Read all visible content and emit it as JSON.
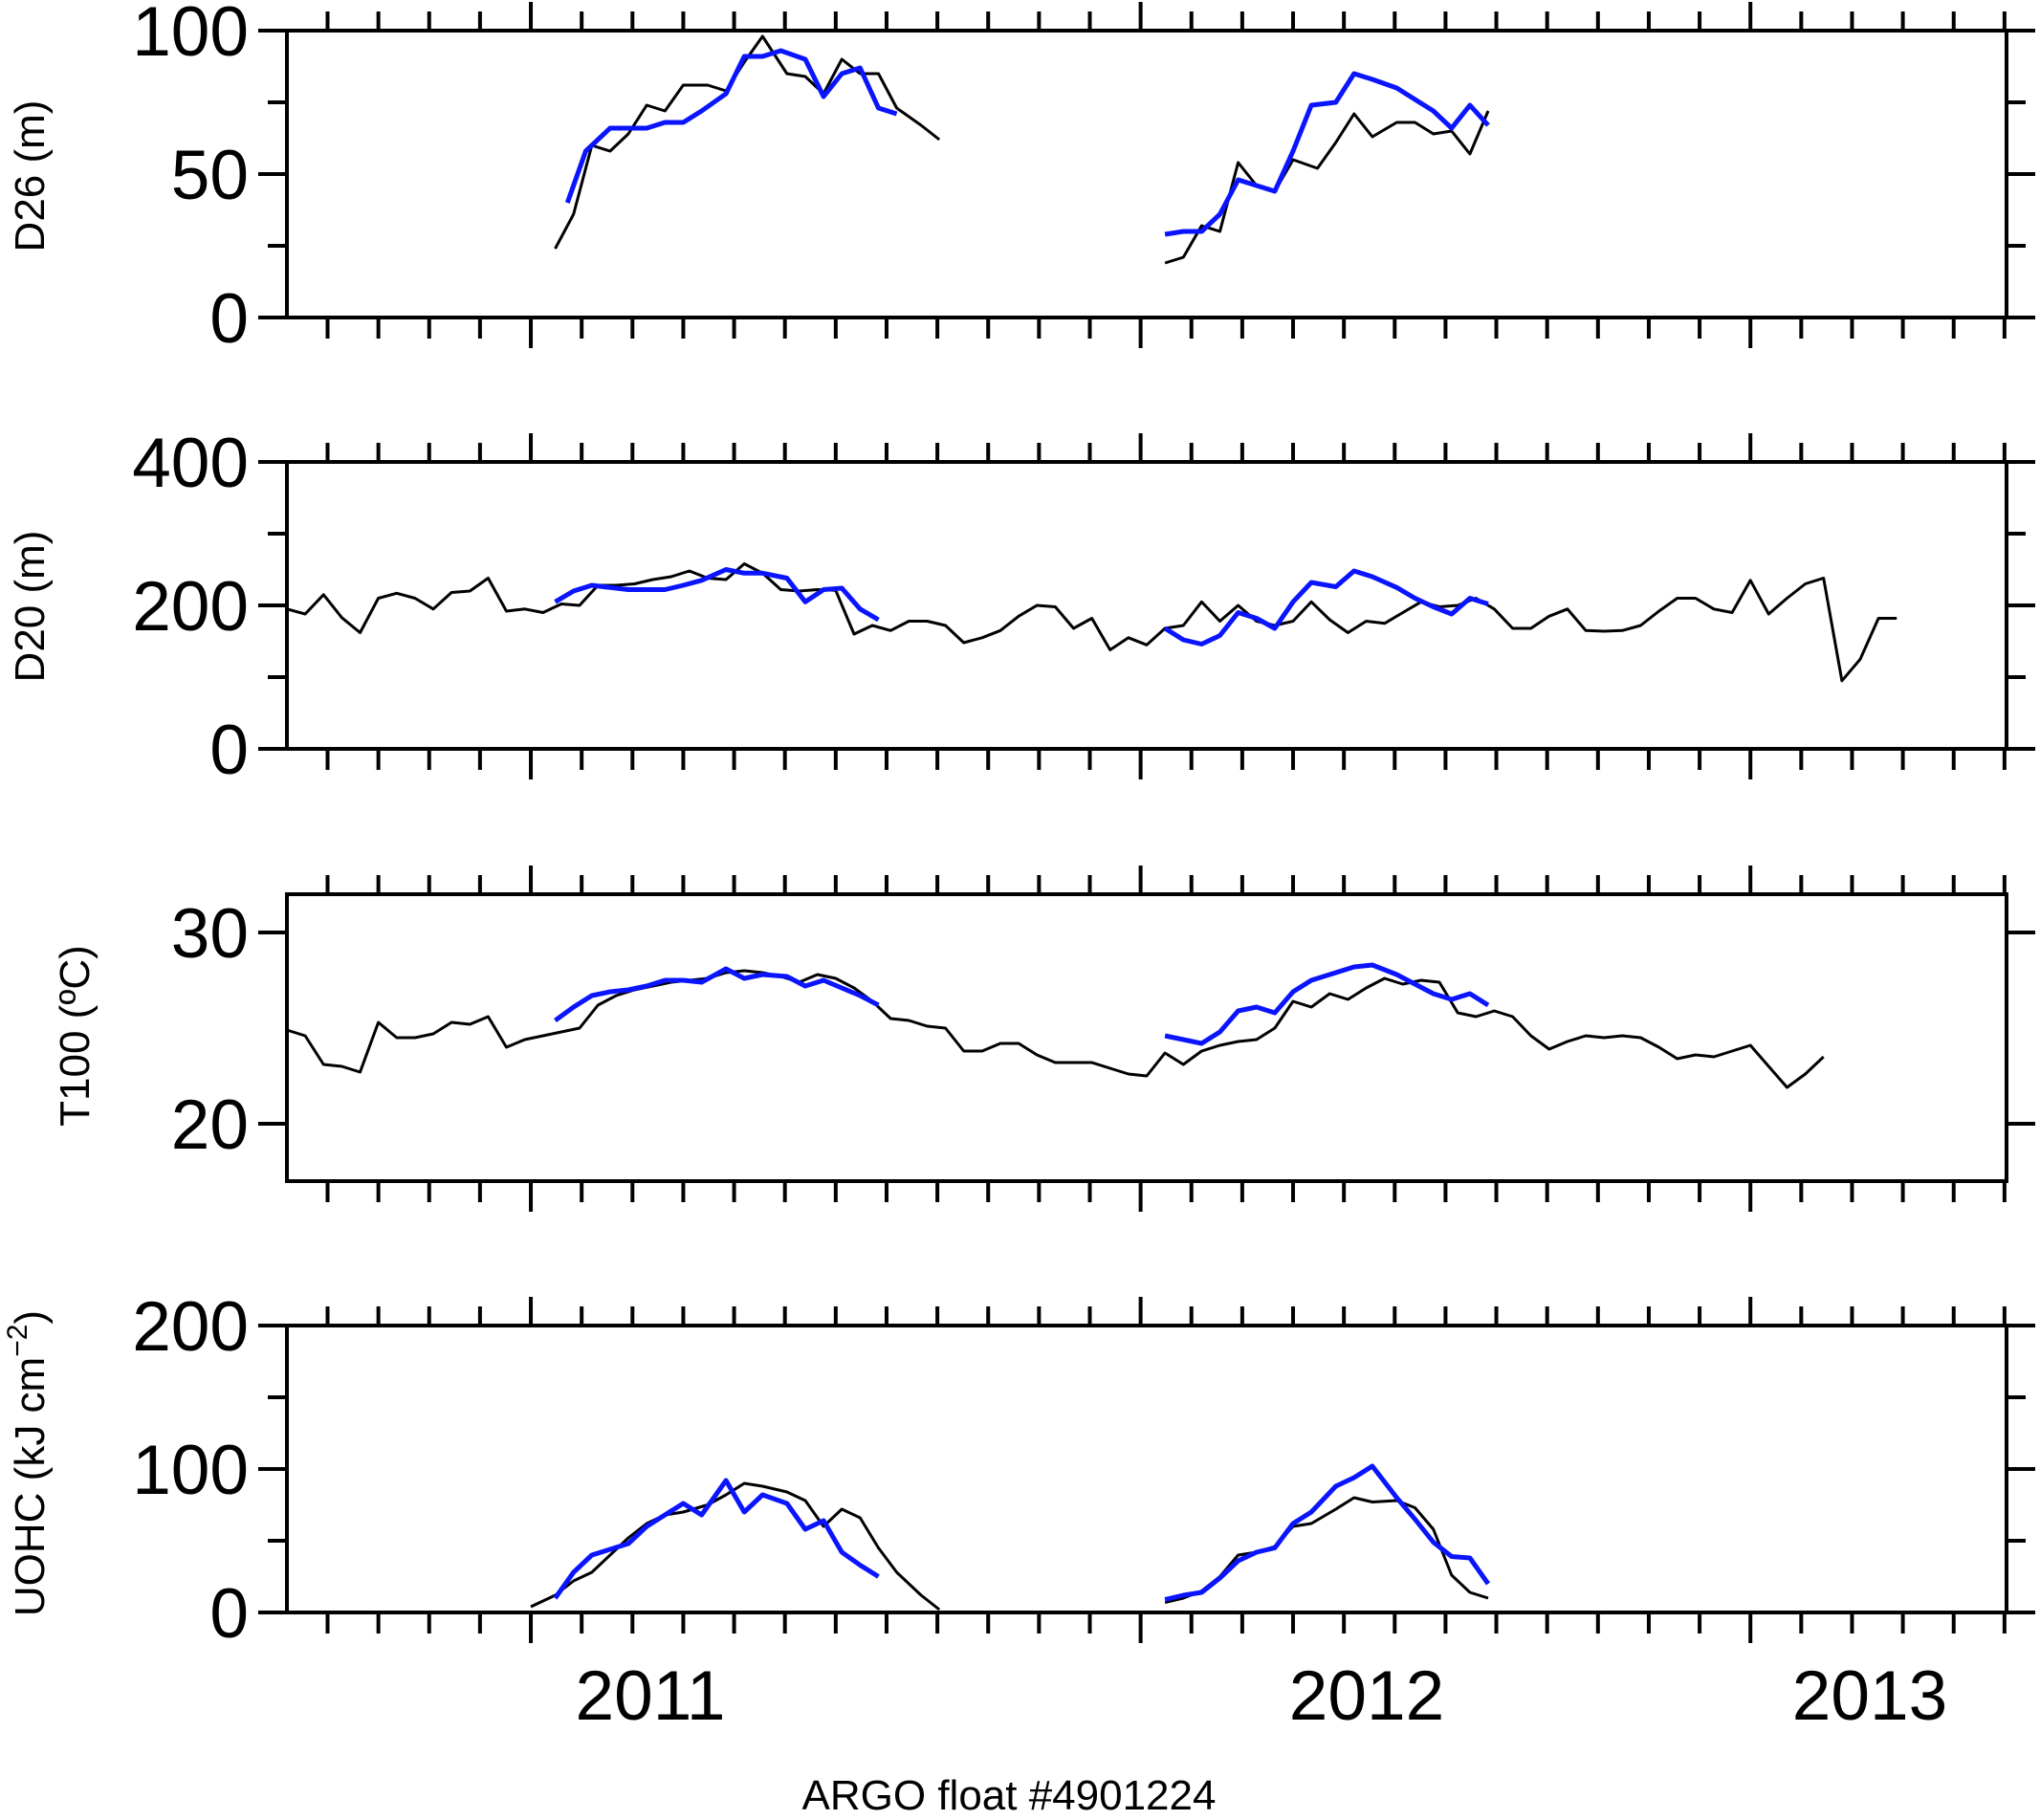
{
  "colors": {
    "series_black": "#000000",
    "series_blue": "#0a14ff"
  },
  "chart_data": [
    {
      "type": "line",
      "ylabel": "D26 (m)",
      "ylim": [
        0,
        100
      ],
      "yticks": [
        0,
        50,
        100
      ],
      "yticklabels": [
        "0",
        "50",
        "100"
      ],
      "xlim": [
        2010.6,
        2013.42
      ],
      "series": [
        {
          "color": "black",
          "x": [
            2011.04,
            2011.07,
            2011.1,
            2011.13,
            2011.16,
            2011.19,
            2011.22,
            2011.25,
            2011.29,
            2011.32,
            2011.35,
            2011.38,
            2011.42,
            2011.45,
            2011.48,
            2011.51,
            2011.54,
            2011.57,
            2011.6,
            2011.64,
            2011.67,
            2011.7
          ],
          "y": [
            24,
            36,
            60,
            58,
            64,
            74,
            72,
            81,
            81,
            79,
            89,
            98,
            85,
            84,
            78,
            90,
            85,
            85,
            73,
            67,
            62,
            null
          ]
        },
        {
          "color": "blue",
          "x": [
            2011.06,
            2011.09,
            2011.13,
            2011.16,
            2011.19,
            2011.22,
            2011.25,
            2011.28,
            2011.32,
            2011.35,
            2011.38,
            2011.41,
            2011.45,
            2011.48,
            2011.51,
            2011.54,
            2011.57,
            2011.6,
            2011.63
          ],
          "y": [
            40,
            58,
            66,
            66,
            66,
            68,
            68,
            72,
            78,
            91,
            91,
            93,
            90,
            77,
            85,
            87,
            73,
            71,
            null
          ]
        },
        {
          "color": "black",
          "x": [
            2012.04,
            2012.07,
            2012.1,
            2012.13,
            2012.16,
            2012.19,
            2012.22,
            2012.25,
            2012.29,
            2012.32,
            2012.35,
            2012.38,
            2012.42,
            2012.45,
            2012.48,
            2012.51,
            2012.54,
            2012.57,
            2012.6,
            2012.63
          ],
          "y": [
            19,
            21,
            32,
            30,
            54,
            46,
            44,
            55,
            52,
            61,
            71,
            63,
            68,
            68,
            64,
            65,
            57,
            72,
            null,
            null
          ]
        },
        {
          "color": "blue",
          "x": [
            2012.04,
            2012.07,
            2012.1,
            2012.13,
            2012.16,
            2012.19,
            2012.22,
            2012.25,
            2012.28,
            2012.32,
            2012.35,
            2012.38,
            2012.42,
            2012.45,
            2012.48,
            2012.51,
            2012.54,
            2012.57
          ],
          "y": [
            29,
            30,
            30,
            36,
            48,
            46,
            44,
            58,
            74,
            75,
            85,
            83,
            80,
            76,
            72,
            66,
            74,
            67
          ]
        }
      ]
    },
    {
      "type": "line",
      "ylabel": "D20 (m)",
      "ylim": [
        0,
        400
      ],
      "yticks": [
        0,
        200,
        400
      ],
      "yticklabels": [
        "0",
        "200",
        "400"
      ],
      "xlim": [
        2010.6,
        2013.42
      ],
      "series": [
        {
          "color": "black",
          "x": [
            2010.6,
            2010.63,
            2010.66,
            2010.69,
            2010.72,
            2010.75,
            2010.78,
            2010.81,
            2010.84,
            2010.87,
            2010.9,
            2010.93,
            2010.96,
            2010.99,
            2011.02,
            2011.05,
            2011.08,
            2011.11,
            2011.14,
            2011.17,
            2011.2,
            2011.23,
            2011.26,
            2011.29,
            2011.32,
            2011.35,
            2011.38,
            2011.41,
            2011.44,
            2011.47,
            2011.5,
            2011.53,
            2011.56,
            2011.59,
            2011.62,
            2011.65,
            2011.68,
            2011.71,
            2011.74,
            2011.77,
            2011.8,
            2011.83,
            2011.86,
            2011.89,
            2011.92,
            2011.95,
            2011.98,
            2012.01,
            2012.04,
            2012.07,
            2012.1,
            2012.13,
            2012.16,
            2012.19,
            2012.22,
            2012.25,
            2012.28,
            2012.31,
            2012.34,
            2012.37,
            2012.4,
            2012.43,
            2012.46,
            2012.49,
            2012.52,
            2012.55,
            2012.58,
            2012.61,
            2012.64,
            2012.67,
            2012.7,
            2012.73,
            2012.76,
            2012.79,
            2012.82,
            2012.85,
            2012.88,
            2012.91,
            2012.94,
            2012.97,
            2013.0,
            2013.03,
            2013.06,
            2013.09,
            2013.12,
            2013.15,
            2013.18,
            2013.21,
            2013.24,
            2013.27,
            2013.3,
            2013.33,
            2013.36,
            2013.39,
            2013.42
          ],
          "y": [
            195,
            188,
            215,
            183,
            162,
            210,
            217,
            210,
            195,
            218,
            220,
            238,
            192,
            195,
            190,
            202,
            200,
            228,
            228,
            230,
            236,
            240,
            248,
            238,
            236,
            258,
            245,
            222,
            220,
            222,
            221,
            160,
            172,
            165,
            178,
            178,
            172,
            148,
            155,
            165,
            185,
            200,
            198,
            168,
            182,
            138,
            155,
            145,
            168,
            172,
            205,
            178,
            200,
            178,
            172,
            178,
            205,
            180,
            162,
            178,
            175,
            190,
            205,
            198,
            200,
            210,
            195,
            168,
            168,
            185,
            195,
            165,
            164,
            165,
            172,
            192,
            210,
            210,
            195,
            190,
            235,
            188,
            210,
            230,
            238,
            95,
            125,
            182,
            182,
            null,
            null,
            null,
            null,
            null,
            null
          ]
        },
        {
          "color": "blue",
          "x": [
            2011.04,
            2011.07,
            2011.1,
            2011.13,
            2011.16,
            2011.19,
            2011.22,
            2011.25,
            2011.28,
            2011.32,
            2011.35,
            2011.38,
            2011.42,
            2011.45,
            2011.48,
            2011.51,
            2011.54,
            2011.57,
            2011.6
          ],
          "y": [
            205,
            220,
            228,
            225,
            222,
            222,
            222,
            228,
            235,
            250,
            245,
            245,
            238,
            205,
            222,
            224,
            195,
            180,
            null
          ]
        },
        {
          "color": "blue",
          "x": [
            2012.04,
            2012.07,
            2012.1,
            2012.13,
            2012.16,
            2012.19,
            2012.22,
            2012.25,
            2012.28,
            2012.32,
            2012.35,
            2012.38,
            2012.42,
            2012.45,
            2012.48,
            2012.51,
            2012.54,
            2012.57
          ],
          "y": [
            168,
            152,
            146,
            158,
            190,
            182,
            168,
            205,
            232,
            226,
            248,
            240,
            225,
            210,
            198,
            188,
            210,
            202
          ]
        }
      ]
    },
    {
      "type": "line",
      "ylabel": "T100 (ºC)",
      "ylim": [
        17,
        32
      ],
      "yticks": [
        20,
        30
      ],
      "yticklabels": [
        "20",
        "30"
      ],
      "xlim": [
        2010.6,
        2013.42
      ],
      "series": [
        {
          "color": "black",
          "x": [
            2010.6,
            2010.63,
            2010.66,
            2010.69,
            2010.72,
            2010.75,
            2010.78,
            2010.81,
            2010.84,
            2010.87,
            2010.9,
            2010.93,
            2010.96,
            2010.99,
            2011.02,
            2011.05,
            2011.08,
            2011.11,
            2011.14,
            2011.17,
            2011.2,
            2011.23,
            2011.26,
            2011.29,
            2011.32,
            2011.35,
            2011.38,
            2011.41,
            2011.44,
            2011.47,
            2011.5,
            2011.53,
            2011.56,
            2011.59,
            2011.62,
            2011.65,
            2011.68,
            2011.71,
            2011.74,
            2011.77,
            2011.8,
            2011.83,
            2011.86,
            2011.89,
            2011.92,
            2011.95,
            2011.98,
            2012.01,
            2012.04,
            2012.07,
            2012.1,
            2012.13,
            2012.16,
            2012.19,
            2012.22,
            2012.25,
            2012.28,
            2012.31,
            2012.34,
            2012.37,
            2012.4,
            2012.43,
            2012.46,
            2012.49,
            2012.52,
            2012.55,
            2012.58,
            2012.61,
            2012.64,
            2012.67,
            2012.7,
            2012.73,
            2012.76,
            2012.79,
            2012.82,
            2012.85,
            2012.88,
            2012.91,
            2012.94,
            2012.97,
            2013.0,
            2013.03,
            2013.06,
            2013.09,
            2013.12,
            2013.15,
            2013.18,
            2013.21,
            2013.24,
            2013.27
          ],
          "y": [
            24.9,
            24.6,
            23.1,
            23.0,
            22.7,
            25.3,
            24.5,
            24.5,
            24.7,
            25.3,
            25.2,
            25.6,
            24.0,
            24.4,
            24.6,
            24.8,
            25.0,
            26.2,
            26.7,
            27.0,
            27.2,
            27.4,
            27.5,
            27.6,
            27.9,
            28.0,
            27.9,
            27.7,
            27.4,
            27.8,
            27.6,
            27.1,
            26.4,
            25.5,
            25.4,
            25.1,
            25.0,
            23.8,
            23.8,
            24.2,
            24.2,
            23.6,
            23.2,
            23.2,
            23.2,
            22.9,
            22.6,
            22.5,
            23.7,
            23.1,
            23.8,
            24.1,
            24.3,
            24.4,
            25.0,
            26.4,
            26.1,
            26.8,
            26.5,
            27.1,
            27.6,
            27.3,
            27.5,
            27.4,
            25.8,
            25.6,
            25.9,
            25.6,
            24.6,
            23.9,
            24.3,
            24.6,
            24.5,
            24.6,
            24.5,
            24.0,
            23.4,
            23.6,
            23.5,
            23.8,
            24.1,
            23.0,
            21.9,
            22.6,
            23.5,
            null,
            null,
            null,
            null,
            null
          ]
        },
        {
          "color": "blue",
          "x": [
            2011.04,
            2011.07,
            2011.1,
            2011.13,
            2011.16,
            2011.19,
            2011.22,
            2011.25,
            2011.28,
            2011.32,
            2011.35,
            2011.38,
            2011.42,
            2011.45,
            2011.48,
            2011.51,
            2011.54,
            2011.57,
            2011.6
          ],
          "y": [
            25.4,
            26.1,
            26.7,
            26.9,
            27.0,
            27.2,
            27.5,
            27.5,
            27.4,
            28.1,
            27.6,
            27.8,
            27.7,
            27.2,
            27.5,
            27.1,
            26.7,
            26.2,
            null
          ]
        },
        {
          "color": "blue",
          "x": [
            2012.04,
            2012.07,
            2012.1,
            2012.13,
            2012.16,
            2012.19,
            2012.22,
            2012.25,
            2012.28,
            2012.32,
            2012.35,
            2012.38,
            2012.42,
            2012.45,
            2012.48,
            2012.51,
            2012.54,
            2012.57
          ],
          "y": [
            24.6,
            24.4,
            24.2,
            24.8,
            25.9,
            26.1,
            25.8,
            26.9,
            27.5,
            27.9,
            28.2,
            28.3,
            27.8,
            27.3,
            26.8,
            26.5,
            26.8,
            26.2
          ]
        }
      ]
    },
    {
      "type": "line",
      "ylabel": "UOHC (kJ cm−2)",
      "ylabel_main": "UOHC (kJ cm",
      "ylabel_sup": "−2",
      "ylabel_close": ")",
      "ylim": [
        0,
        200
      ],
      "yticks": [
        0,
        100,
        200
      ],
      "yticklabels": [
        "0",
        "100",
        "200"
      ],
      "xlim": [
        2010.6,
        2013.42
      ],
      "xticks": [
        2011,
        2012,
        2013
      ],
      "xticklabels": [
        "2011",
        "2012",
        "2013"
      ],
      "xlabel": "ARGO float #4901224",
      "series": [
        {
          "color": "black",
          "x": [
            2011.0,
            2011.04,
            2011.07,
            2011.1,
            2011.13,
            2011.16,
            2011.19,
            2011.22,
            2011.25,
            2011.29,
            2011.32,
            2011.35,
            2011.38,
            2011.42,
            2011.45,
            2011.48,
            2011.51,
            2011.54,
            2011.57,
            2011.6,
            2011.64,
            2011.67,
            2011.7
          ],
          "y": [
            4,
            12,
            22,
            28,
            40,
            52,
            62,
            68,
            70,
            75,
            82,
            90,
            88,
            84,
            78,
            60,
            72,
            66,
            45,
            28,
            12,
            2,
            null
          ]
        },
        {
          "color": "blue",
          "x": [
            2011.04,
            2011.07,
            2011.1,
            2011.13,
            2011.16,
            2011.19,
            2011.22,
            2011.25,
            2011.28,
            2011.32,
            2011.35,
            2011.38,
            2011.42,
            2011.45,
            2011.48,
            2011.51,
            2011.54,
            2011.57,
            2011.6
          ],
          "y": [
            10,
            28,
            40,
            44,
            48,
            60,
            68,
            76,
            68,
            92,
            70,
            82,
            76,
            58,
            64,
            42,
            33,
            25,
            null
          ]
        },
        {
          "color": "black",
          "x": [
            2012.04,
            2012.07,
            2012.1,
            2012.13,
            2012.16,
            2012.19,
            2012.22,
            2012.25,
            2012.28,
            2012.32,
            2012.35,
            2012.38,
            2012.42,
            2012.45,
            2012.48,
            2012.51,
            2012.54,
            2012.57
          ],
          "y": [
            7,
            10,
            15,
            25,
            40,
            42,
            46,
            60,
            62,
            72,
            80,
            77,
            78,
            73,
            58,
            26,
            14,
            10
          ]
        },
        {
          "color": "blue",
          "x": [
            2012.04,
            2012.07,
            2012.1,
            2012.13,
            2012.16,
            2012.19,
            2012.22,
            2012.25,
            2012.28,
            2012.32,
            2012.35,
            2012.38,
            2012.42,
            2012.45,
            2012.48,
            2012.51,
            2012.54,
            2012.57
          ],
          "y": [
            9,
            12,
            14,
            24,
            36,
            42,
            45,
            62,
            70,
            88,
            94,
            102,
            80,
            65,
            49,
            39,
            38,
            20
          ]
        }
      ]
    }
  ]
}
